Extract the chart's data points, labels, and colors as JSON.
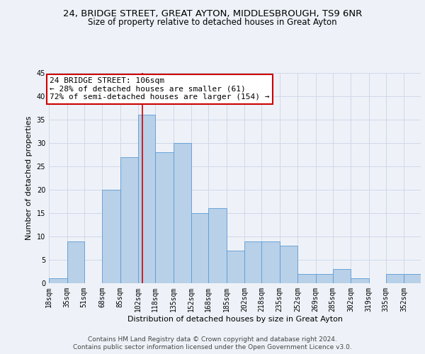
{
  "title_line1": "24, BRIDGE STREET, GREAT AYTON, MIDDLESBROUGH, TS9 6NR",
  "title_line2": "Size of property relative to detached houses in Great Ayton",
  "xlabel": "Distribution of detached houses by size in Great Ayton",
  "ylabel": "Number of detached properties",
  "bin_labels": [
    "18sqm",
    "35sqm",
    "51sqm",
    "68sqm",
    "85sqm",
    "102sqm",
    "118sqm",
    "135sqm",
    "152sqm",
    "168sqm",
    "185sqm",
    "202sqm",
    "218sqm",
    "235sqm",
    "252sqm",
    "269sqm",
    "285sqm",
    "302sqm",
    "319sqm",
    "335sqm",
    "352sqm"
  ],
  "bin_edges": [
    18,
    35,
    51,
    68,
    85,
    102,
    118,
    135,
    152,
    168,
    185,
    202,
    218,
    235,
    252,
    269,
    285,
    302,
    319,
    335,
    352,
    368
  ],
  "counts": [
    1,
    9,
    0,
    20,
    27,
    36,
    28,
    30,
    15,
    16,
    7,
    9,
    9,
    8,
    2,
    2,
    3,
    1,
    0,
    2,
    2
  ],
  "bar_color": "#b8d0e8",
  "bar_edge_color": "#5b9bd5",
  "property_size": 106,
  "vline_color": "#cc0000",
  "annotation_text": "24 BRIDGE STREET: 106sqm\n← 28% of detached houses are smaller (61)\n72% of semi-detached houses are larger (154) →",
  "annotation_box_color": "#ffffff",
  "annotation_box_edge_color": "#cc0000",
  "ylim": [
    0,
    45
  ],
  "yticks": [
    0,
    5,
    10,
    15,
    20,
    25,
    30,
    35,
    40,
    45
  ],
  "grid_color": "#d0d8e8",
  "background_color": "#eef2f8",
  "footer_line1": "Contains HM Land Registry data © Crown copyright and database right 2024.",
  "footer_line2": "Contains public sector information licensed under the Open Government Licence v3.0.",
  "title_fontsize": 9.5,
  "subtitle_fontsize": 8.5,
  "axis_label_fontsize": 8,
  "tick_fontsize": 7,
  "annotation_fontsize": 8,
  "footer_fontsize": 6.5
}
